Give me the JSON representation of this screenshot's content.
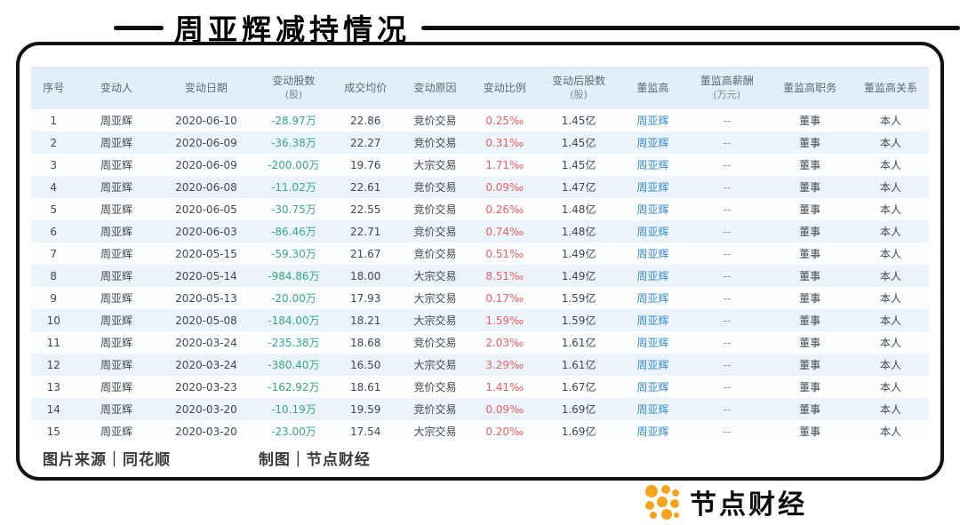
{
  "chart_data": {
    "type": "table",
    "title": "周亚辉减持情况",
    "columns": [
      {
        "key": "no",
        "label": "序号",
        "sub": ""
      },
      {
        "key": "person",
        "label": "变动人",
        "sub": ""
      },
      {
        "key": "date",
        "label": "变动日期",
        "sub": ""
      },
      {
        "key": "shares",
        "label": "变动股数",
        "sub": "(股)"
      },
      {
        "key": "price",
        "label": "成交均价",
        "sub": ""
      },
      {
        "key": "reason",
        "label": "变动原因",
        "sub": ""
      },
      {
        "key": "ratio",
        "label": "变动比例",
        "sub": ""
      },
      {
        "key": "after",
        "label": "变动后股数",
        "sub": "(股)"
      },
      {
        "key": "exec",
        "label": "董监高",
        "sub": ""
      },
      {
        "key": "salary",
        "label": "董监高薪酬",
        "sub": "(万元)"
      },
      {
        "key": "position",
        "label": "董监高职务",
        "sub": ""
      },
      {
        "key": "relation",
        "label": "董监高关系",
        "sub": ""
      }
    ],
    "rows": [
      {
        "no": "1",
        "person": "周亚辉",
        "date": "2020-06-10",
        "shares": "-28.97万",
        "price": "22.86",
        "reason": "竞价交易",
        "ratio": "0.25‰",
        "after": "1.45亿",
        "exec": "周亚辉",
        "salary": "--",
        "position": "董事",
        "relation": "本人"
      },
      {
        "no": "2",
        "person": "周亚辉",
        "date": "2020-06-09",
        "shares": "-36.38万",
        "price": "22.27",
        "reason": "竞价交易",
        "ratio": "0.31‰",
        "after": "1.45亿",
        "exec": "周亚辉",
        "salary": "--",
        "position": "董事",
        "relation": "本人"
      },
      {
        "no": "3",
        "person": "周亚辉",
        "date": "2020-06-09",
        "shares": "-200.00万",
        "price": "19.76",
        "reason": "大宗交易",
        "ratio": "1.71‰",
        "after": "1.45亿",
        "exec": "周亚辉",
        "salary": "--",
        "position": "董事",
        "relation": "本人"
      },
      {
        "no": "4",
        "person": "周亚辉",
        "date": "2020-06-08",
        "shares": "-11.02万",
        "price": "22.61",
        "reason": "竞价交易",
        "ratio": "0.09‰",
        "after": "1.47亿",
        "exec": "周亚辉",
        "salary": "--",
        "position": "董事",
        "relation": "本人"
      },
      {
        "no": "5",
        "person": "周亚辉",
        "date": "2020-06-05",
        "shares": "-30.75万",
        "price": "22.55",
        "reason": "竞价交易",
        "ratio": "0.26‰",
        "after": "1.48亿",
        "exec": "周亚辉",
        "salary": "--",
        "position": "董事",
        "relation": "本人"
      },
      {
        "no": "6",
        "person": "周亚辉",
        "date": "2020-06-03",
        "shares": "-86.46万",
        "price": "22.71",
        "reason": "竞价交易",
        "ratio": "0.74‰",
        "after": "1.48亿",
        "exec": "周亚辉",
        "salary": "--",
        "position": "董事",
        "relation": "本人"
      },
      {
        "no": "7",
        "person": "周亚辉",
        "date": "2020-05-15",
        "shares": "-59.30万",
        "price": "21.67",
        "reason": "竞价交易",
        "ratio": "0.51‰",
        "after": "1.49亿",
        "exec": "周亚辉",
        "salary": "--",
        "position": "董事",
        "relation": "本人"
      },
      {
        "no": "8",
        "person": "周亚辉",
        "date": "2020-05-14",
        "shares": "-984.86万",
        "price": "18.00",
        "reason": "大宗交易",
        "ratio": "8.51‰",
        "after": "1.49亿",
        "exec": "周亚辉",
        "salary": "--",
        "position": "董事",
        "relation": "本人"
      },
      {
        "no": "9",
        "person": "周亚辉",
        "date": "2020-05-13",
        "shares": "-20.00万",
        "price": "17.93",
        "reason": "大宗交易",
        "ratio": "0.17‰",
        "after": "1.59亿",
        "exec": "周亚辉",
        "salary": "--",
        "position": "董事",
        "relation": "本人"
      },
      {
        "no": "10",
        "person": "周亚辉",
        "date": "2020-05-08",
        "shares": "-184.00万",
        "price": "18.21",
        "reason": "大宗交易",
        "ratio": "1.59‰",
        "after": "1.59亿",
        "exec": "周亚辉",
        "salary": "--",
        "position": "董事",
        "relation": "本人"
      },
      {
        "no": "11",
        "person": "周亚辉",
        "date": "2020-03-24",
        "shares": "-235.38万",
        "price": "18.68",
        "reason": "竞价交易",
        "ratio": "2.03‰",
        "after": "1.61亿",
        "exec": "周亚辉",
        "salary": "--",
        "position": "董事",
        "relation": "本人"
      },
      {
        "no": "12",
        "person": "周亚辉",
        "date": "2020-03-24",
        "shares": "-380.40万",
        "price": "16.50",
        "reason": "大宗交易",
        "ratio": "3.29‰",
        "after": "1.61亿",
        "exec": "周亚辉",
        "salary": "--",
        "position": "董事",
        "relation": "本人"
      },
      {
        "no": "13",
        "person": "周亚辉",
        "date": "2020-03-23",
        "shares": "-162.92万",
        "price": "18.61",
        "reason": "竞价交易",
        "ratio": "1.41‰",
        "after": "1.67亿",
        "exec": "周亚辉",
        "salary": "--",
        "position": "董事",
        "relation": "本人"
      },
      {
        "no": "14",
        "person": "周亚辉",
        "date": "2020-03-20",
        "shares": "-10.19万",
        "price": "19.59",
        "reason": "竞价交易",
        "ratio": "0.09‰",
        "after": "1.69亿",
        "exec": "周亚辉",
        "salary": "--",
        "position": "董事",
        "relation": "本人"
      },
      {
        "no": "15",
        "person": "周亚辉",
        "date": "2020-03-20",
        "shares": "-23.00万",
        "price": "17.54",
        "reason": "大宗交易",
        "ratio": "0.20‰",
        "after": "1.69亿",
        "exec": "周亚辉",
        "salary": "--",
        "position": "董事",
        "relation": "本人"
      }
    ]
  },
  "footer": {
    "source": "图片来源｜同花顺",
    "credit": "制图｜节点财经"
  },
  "logo": {
    "brand": "节点财经",
    "icon": "dots-cluster-icon"
  },
  "colors": {
    "decrease_green": "#36a97e",
    "ratio_red": "#ec5f5f",
    "link_blue": "#3a8ccc",
    "header_bg": "#e3eef8",
    "row_alt_bg": "#ebf4fb",
    "logo_orange": "#f6a41d"
  }
}
